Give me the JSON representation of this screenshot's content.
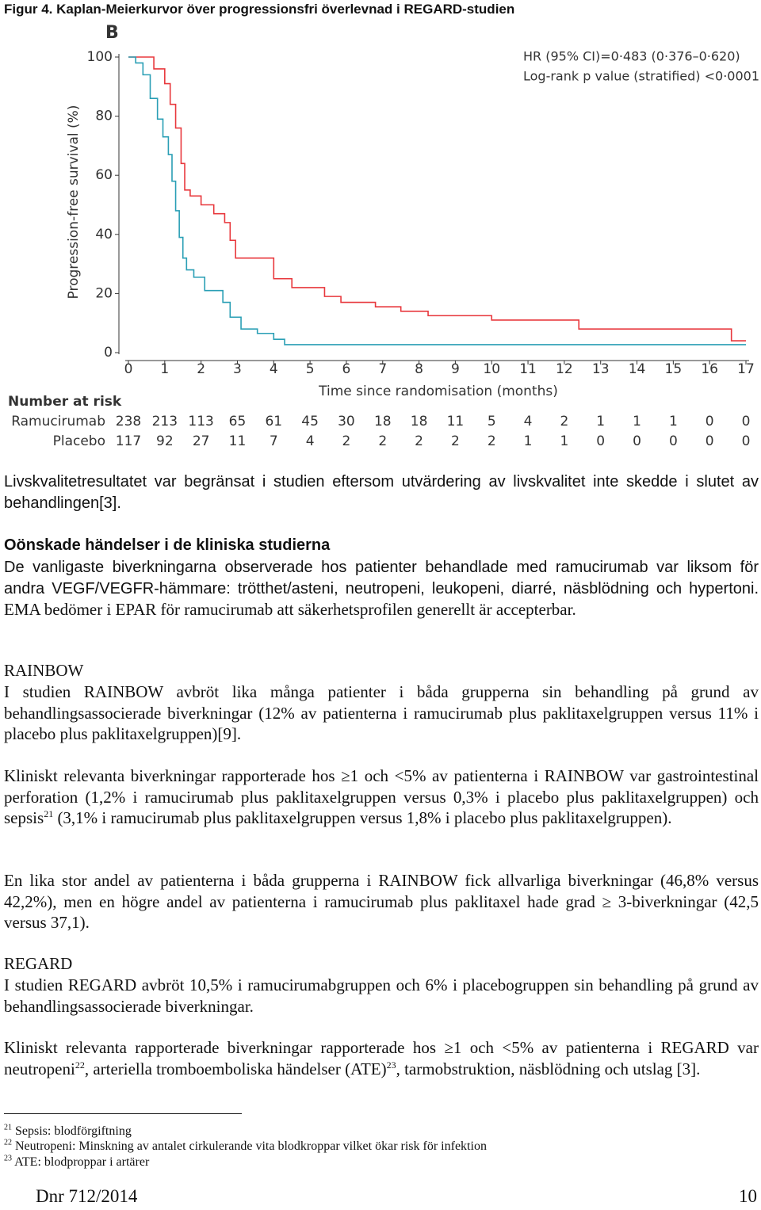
{
  "caption": "Figur 4. Kaplan-Meierkurvor över progressionsfri överlevnad i REGARD-studien",
  "chart_data": {
    "type": "line",
    "step": true,
    "panel_label": "B",
    "y_label": "Progression-free survival (%)",
    "x_label": "Time since randomisation (months)",
    "annotations": [
      "HR (95% CI)=0·483 (0·376–0·620)",
      "Log-rank p value (stratified) <0·0001"
    ],
    "xlim": [
      0,
      17
    ],
    "ylim": [
      0,
      100
    ],
    "xticks": [
      0,
      1,
      2,
      3,
      4,
      5,
      6,
      7,
      8,
      9,
      10,
      11,
      12,
      13,
      14,
      15,
      16,
      17
    ],
    "yticks": [
      0,
      20,
      40,
      60,
      80,
      100
    ],
    "risk_title": "Number at risk",
    "series": [
      {
        "name": "Ramucirumab",
        "color": "#e8383d",
        "x": [
          0,
          0.7,
          0.7,
          1.0,
          1.0,
          1.15,
          1.15,
          1.3,
          1.3,
          1.45,
          1.45,
          1.55,
          1.55,
          1.7,
          1.7,
          2.0,
          2.0,
          2.35,
          2.35,
          2.65,
          2.65,
          2.8,
          2.8,
          2.95,
          2.95,
          4.0,
          4.0,
          4.5,
          4.5,
          5.4,
          5.4,
          5.85,
          5.85,
          6.8,
          6.8,
          7.5,
          7.5,
          8.25,
          8.25,
          10.0,
          10.0,
          12.4,
          12.4,
          16.6,
          16.6,
          17
        ],
        "values": [
          100,
          100,
          96,
          96,
          91,
          91,
          84,
          84,
          76,
          76,
          64,
          64,
          55,
          55,
          53,
          53,
          50,
          50,
          47,
          47,
          44,
          44,
          38,
          38,
          32,
          32,
          25,
          25,
          22,
          22,
          19,
          19,
          17,
          17,
          15.5,
          15.5,
          14,
          14,
          12.5,
          12.5,
          11,
          11,
          8,
          8,
          4,
          4
        ],
        "at_risk": [
          238,
          213,
          113,
          65,
          61,
          45,
          30,
          18,
          18,
          11,
          5,
          4,
          2,
          1,
          1,
          1,
          0,
          0
        ]
      },
      {
        "name": "Placebo",
        "color": "#2a9fb5",
        "x": [
          0,
          0.2,
          0.2,
          0.4,
          0.4,
          0.6,
          0.6,
          0.8,
          0.8,
          0.95,
          0.95,
          1.1,
          1.1,
          1.2,
          1.2,
          1.3,
          1.3,
          1.4,
          1.4,
          1.5,
          1.5,
          1.6,
          1.6,
          1.8,
          1.8,
          2.1,
          2.1,
          2.6,
          2.6,
          2.8,
          2.8,
          3.1,
          3.1,
          3.55,
          3.55,
          4.0,
          4.0,
          4.3,
          4.3,
          17
        ],
        "values": [
          100,
          100,
          98,
          98,
          94,
          94,
          86,
          86,
          79,
          79,
          73,
          73,
          67,
          67,
          58,
          58,
          48,
          48,
          39,
          39,
          32,
          32,
          28,
          28,
          25.5,
          25.5,
          21,
          21,
          17,
          17,
          12,
          12,
          8,
          8,
          6.5,
          6.5,
          4.5,
          4.5,
          2.7,
          2.7
        ],
        "at_risk": [
          117,
          92,
          27,
          11,
          7,
          4,
          2,
          2,
          2,
          2,
          2,
          1,
          1,
          0,
          0,
          0,
          0,
          0
        ]
      }
    ]
  },
  "body": {
    "p1": "Livskvalitetresultatet var begränsat i studien eftersom utvärdering av livskvalitet inte skedde i slutet av behandlingen[3].",
    "heading": "Oönskade händelser i de kliniska studierna",
    "p2": [
      "De vanligaste biverkningarna observerade hos patienter behandlade med ramucirumab var liksom för andra VEGF/VEGFR-hämmare: trötthet/asteni, neutropeni, leukopeni, diarré, näsblödning och hypertoni.",
      "EMA bedömer i EPAR för ramucirumab att säkerhetsprofilen generellt är accepterbar."
    ],
    "rainbow_heading": "RAINBOW",
    "p3": "I studien RAINBOW avbröt lika många patienter i båda grupperna sin behandling på grund av behandlingsassocierade biverkningar (12% av patienterna i ramucirumab plus paklitaxelgruppen versus 11% i placebo plus paklitaxelgruppen)[9].",
    "p4": [
      "Kliniskt relevanta biverkningar rapporterade hos ≥1 och <5% av patienterna i RAINBOW var gastrointestinal perforation (1,2% i ramucirumab plus paklitaxelgruppen versus 0,3% i placebo plus paklitaxelgruppen) och sepsis",
      "21",
      " (3,1% i ramucirumab plus paklitaxelgruppen versus 1,8% i placebo plus paklitaxelgruppen)."
    ],
    "p5": "En lika stor andel av patienterna i båda grupperna i RAINBOW fick allvarliga biverkningar (46,8% versus 42,2%), men en högre andel av patienterna i ramucirumab plus paklitaxel hade grad ≥ 3-biverkningar (42,5 versus 37,1).",
    "regard_heading": "REGARD",
    "p6": "I studien REGARD avbröt 10,5% i ramucirumabgruppen och 6% i placebogruppen sin behandling på grund av behandlingsassocierade biverkningar.",
    "p7": [
      "Kliniskt relevanta rapporterade biverkningar rapporterade hos ≥1 och <5% av patienterna i REGARD var neutropeni",
      "22",
      ", arteriella tromboemboliska händelser (ATE)",
      "23",
      ", tarmobstruktion, näsblödning och utslag [3]."
    ]
  },
  "footnotes": [
    [
      "21",
      "Sepsis: blodförgiftning"
    ],
    [
      "22",
      "Neutropeni: Minskning av antalet cirkulerande vita blodkroppar vilket ökar risk för infektion"
    ],
    [
      "23",
      "ATE: blodproppar i artärer"
    ]
  ],
  "footer": {
    "left": "Dnr 712/2014",
    "right": "10"
  }
}
